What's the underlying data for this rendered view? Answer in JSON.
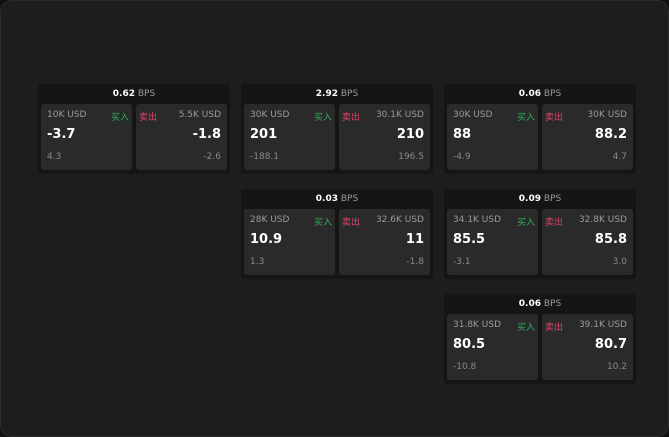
{
  "cards": [
    {
      "bps": "0.62",
      "unit": "BPS",
      "buy": {
        "size": "10K USD",
        "label": "买入",
        "price": "-3.7",
        "change": "4.3"
      },
      "sell": {
        "size": "5.5K USD",
        "label": "卖出",
        "price": "-1.8",
        "change": "-2.6"
      }
    },
    {
      "bps": "2.92",
      "unit": "BPS",
      "buy": {
        "size": "30K USD",
        "label": "买入",
        "price": "201",
        "change": "-188.1"
      },
      "sell": {
        "size": "30.1K USD",
        "label": "卖出",
        "price": "210",
        "change": "196.5"
      }
    },
    {
      "bps": "0.06",
      "unit": "BPS",
      "buy": {
        "size": "30K USD",
        "label": "买入",
        "price": "88",
        "change": "-4.9"
      },
      "sell": {
        "size": "30K USD",
        "label": "卖出",
        "price": "88.2",
        "change": "4.7"
      }
    },
    {
      "bps": "0.03",
      "unit": "BPS",
      "buy": {
        "size": "28K USD",
        "label": "买入",
        "price": "10.9",
        "change": "1.3"
      },
      "sell": {
        "size": "32.6K USD",
        "label": "卖出",
        "price": "11",
        "change": "-1.8"
      }
    },
    {
      "bps": "0.09",
      "unit": "BPS",
      "buy": {
        "size": "34.1K USD",
        "label": "买入",
        "price": "85.5",
        "change": "-3.1"
      },
      "sell": {
        "size": "32.8K USD",
        "label": "卖出",
        "price": "85.8",
        "change": "3.0"
      }
    },
    {
      "bps": "0.06",
      "unit": "BPS",
      "buy": {
        "size": "31.8K USD",
        "label": "买入",
        "price": "80.5",
        "change": "-10.8"
      },
      "sell": {
        "size": "39.1K USD",
        "label": "卖出",
        "price": "80.7",
        "change": "10.2"
      }
    }
  ],
  "colors": {
    "buy": "#2fb05a",
    "sell": "#e0446a"
  }
}
